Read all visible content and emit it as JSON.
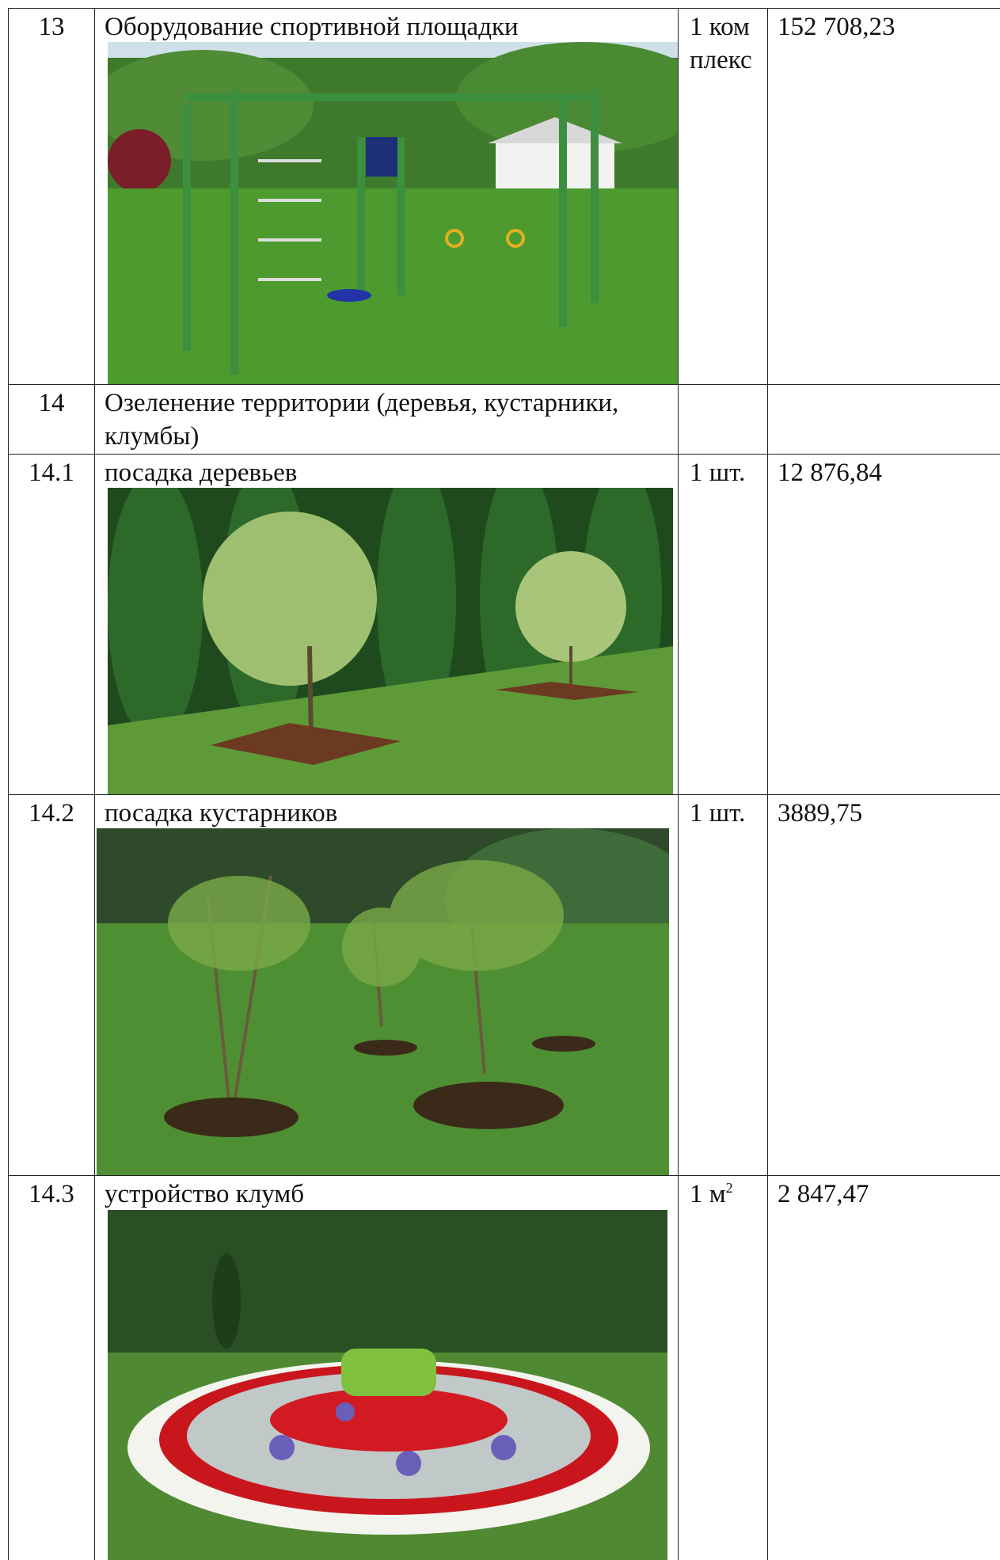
{
  "table": {
    "rows": [
      {
        "number": "13",
        "name": "Оборудование спортивной площадки",
        "unit": "1 комплекс",
        "price": "152 708,23"
      },
      {
        "number": "14",
        "name": "Озеленение территории (деревья, кустарники, клумбы)"
      },
      {
        "number": "14.1",
        "name": "посадка деревьев",
        "unit": "1 шт.",
        "price": "12 876,84"
      },
      {
        "number": "14.2",
        "name": "посадка кустарников",
        "unit": "1 шт.",
        "price": "3889,75"
      },
      {
        "number": "14.3",
        "name": "устройство клумб",
        "unit": "1 м",
        "unit_sup": "2",
        "price": "2 847,47"
      }
    ]
  }
}
